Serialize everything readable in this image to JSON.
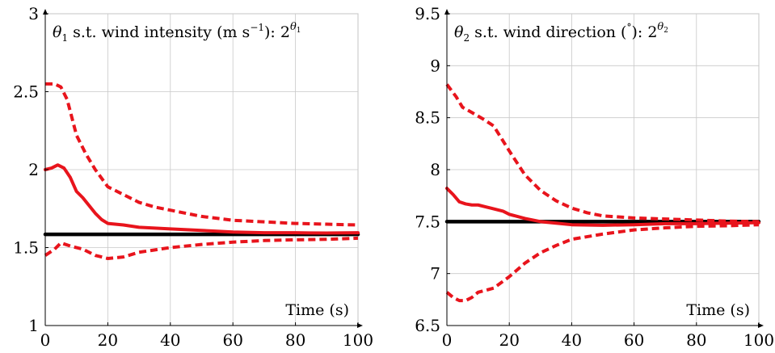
{
  "chart_data": [
    {
      "type": "line",
      "title": "θ1 s.t. wind intensity (m s−1): 2^θ1",
      "title_parts": {
        "symbol": "θ",
        "sub": "1",
        "desc": " s.t. wind intensity (m s",
        "unit_exp": "−1",
        "tail": "): 2",
        "exp_base": "θ",
        "exp_sub": "1"
      },
      "xlabel": "Time (s)",
      "ylabel": "",
      "xlim": [
        0,
        100
      ],
      "ylim": [
        1,
        3
      ],
      "x_ticks": [
        0,
        20,
        40,
        60,
        80,
        100
      ],
      "y_ticks": [
        1,
        1.5,
        2,
        2.5,
        3
      ],
      "x_tick_labels": [
        "0",
        "20",
        "40",
        "60",
        "80",
        "100"
      ],
      "y_tick_labels": [
        "1",
        "1.5",
        "2",
        "2.5",
        "3"
      ],
      "grid": true,
      "legend": "none",
      "series": [
        {
          "role": "true",
          "color": "#000000",
          "style": "solid",
          "points": [
            [
              0,
              1.585
            ],
            [
              100,
              1.585
            ]
          ]
        },
        {
          "role": "mean",
          "color": "#e8141c",
          "style": "solid",
          "points": [
            [
              0,
              2.0
            ],
            [
              2,
              2.01
            ],
            [
              4,
              2.03
            ],
            [
              6,
              2.01
            ],
            [
              8,
              1.95
            ],
            [
              10,
              1.86
            ],
            [
              12,
              1.82
            ],
            [
              14,
              1.77
            ],
            [
              16,
              1.72
            ],
            [
              18,
              1.68
            ],
            [
              20,
              1.655
            ],
            [
              25,
              1.645
            ],
            [
              30,
              1.63
            ],
            [
              40,
              1.62
            ],
            [
              50,
              1.61
            ],
            [
              60,
              1.6
            ],
            [
              70,
              1.595
            ],
            [
              80,
              1.595
            ],
            [
              90,
              1.593
            ],
            [
              100,
              1.595
            ]
          ]
        },
        {
          "role": "upper",
          "color": "#e8141c",
          "style": "dashed",
          "points": [
            [
              0,
              2.55
            ],
            [
              3,
              2.55
            ],
            [
              5,
              2.53
            ],
            [
              7,
              2.45
            ],
            [
              10,
              2.22
            ],
            [
              13,
              2.1
            ],
            [
              16,
              2.0
            ],
            [
              20,
              1.89
            ],
            [
              25,
              1.84
            ],
            [
              30,
              1.79
            ],
            [
              35,
              1.76
            ],
            [
              40,
              1.74
            ],
            [
              50,
              1.7
            ],
            [
              60,
              1.675
            ],
            [
              70,
              1.665
            ],
            [
              80,
              1.655
            ],
            [
              90,
              1.65
            ],
            [
              100,
              1.645
            ]
          ]
        },
        {
          "role": "lower",
          "color": "#e8141c",
          "style": "dashed",
          "points": [
            [
              0,
              1.45
            ],
            [
              3,
              1.49
            ],
            [
              5,
              1.53
            ],
            [
              8,
              1.51
            ],
            [
              12,
              1.49
            ],
            [
              16,
              1.45
            ],
            [
              20,
              1.43
            ],
            [
              25,
              1.44
            ],
            [
              30,
              1.47
            ],
            [
              40,
              1.5
            ],
            [
              50,
              1.52
            ],
            [
              60,
              1.535
            ],
            [
              70,
              1.545
            ],
            [
              80,
              1.55
            ],
            [
              90,
              1.553
            ],
            [
              100,
              1.56
            ]
          ]
        }
      ]
    },
    {
      "type": "line",
      "title": "θ2 s.t. wind direction (°): 2^θ2",
      "title_parts": {
        "symbol": "θ",
        "sub": "2",
        "desc": " s.t. wind direction (",
        "unit_exp": "°",
        "tail": "): 2",
        "exp_base": "θ",
        "exp_sub": "2"
      },
      "xlabel": "Time (s)",
      "ylabel": "",
      "xlim": [
        0,
        100
      ],
      "ylim": [
        6.5,
        9.5
      ],
      "x_ticks": [
        0,
        20,
        40,
        60,
        80,
        100
      ],
      "y_ticks": [
        6.5,
        7,
        7.5,
        8,
        8.5,
        9,
        9.5
      ],
      "x_tick_labels": [
        "0",
        "20",
        "40",
        "60",
        "80",
        "100"
      ],
      "y_tick_labels": [
        "6.5",
        "7",
        "7.5",
        "8",
        "8.5",
        "9",
        "9.5"
      ],
      "grid": true,
      "legend": "none",
      "series": [
        {
          "role": "true",
          "color": "#000000",
          "style": "solid",
          "points": [
            [
              0,
              7.5
            ],
            [
              100,
              7.5
            ]
          ]
        },
        {
          "role": "mean",
          "color": "#e8141c",
          "style": "solid",
          "points": [
            [
              0,
              7.82
            ],
            [
              2,
              7.76
            ],
            [
              4,
              7.69
            ],
            [
              6,
              7.67
            ],
            [
              8,
              7.66
            ],
            [
              10,
              7.66
            ],
            [
              14,
              7.63
            ],
            [
              18,
              7.6
            ],
            [
              20,
              7.57
            ],
            [
              25,
              7.53
            ],
            [
              30,
              7.5
            ],
            [
              35,
              7.485
            ],
            [
              40,
              7.47
            ],
            [
              50,
              7.465
            ],
            [
              60,
              7.47
            ],
            [
              70,
              7.48
            ],
            [
              80,
              7.48
            ],
            [
              90,
              7.485
            ],
            [
              100,
              7.49
            ]
          ]
        },
        {
          "role": "upper",
          "color": "#e8141c",
          "style": "dashed",
          "points": [
            [
              0,
              8.82
            ],
            [
              3,
              8.7
            ],
            [
              5,
              8.6
            ],
            [
              8,
              8.55
            ],
            [
              12,
              8.48
            ],
            [
              15,
              8.42
            ],
            [
              20,
              8.18
            ],
            [
              25,
              7.95
            ],
            [
              30,
              7.8
            ],
            [
              35,
              7.7
            ],
            [
              40,
              7.63
            ],
            [
              45,
              7.585
            ],
            [
              50,
              7.555
            ],
            [
              60,
              7.535
            ],
            [
              70,
              7.525
            ],
            [
              80,
              7.515
            ],
            [
              90,
              7.505
            ],
            [
              100,
              7.5
            ]
          ]
        },
        {
          "role": "lower",
          "color": "#e8141c",
          "style": "dashed",
          "points": [
            [
              0,
              6.82
            ],
            [
              2,
              6.77
            ],
            [
              4,
              6.74
            ],
            [
              6,
              6.74
            ],
            [
              8,
              6.77
            ],
            [
              10,
              6.82
            ],
            [
              15,
              6.86
            ],
            [
              20,
              6.97
            ],
            [
              25,
              7.1
            ],
            [
              30,
              7.2
            ],
            [
              35,
              7.27
            ],
            [
              40,
              7.33
            ],
            [
              50,
              7.38
            ],
            [
              60,
              7.42
            ],
            [
              70,
              7.44
            ],
            [
              80,
              7.455
            ],
            [
              90,
              7.46
            ],
            [
              100,
              7.47
            ]
          ]
        }
      ]
    }
  ]
}
